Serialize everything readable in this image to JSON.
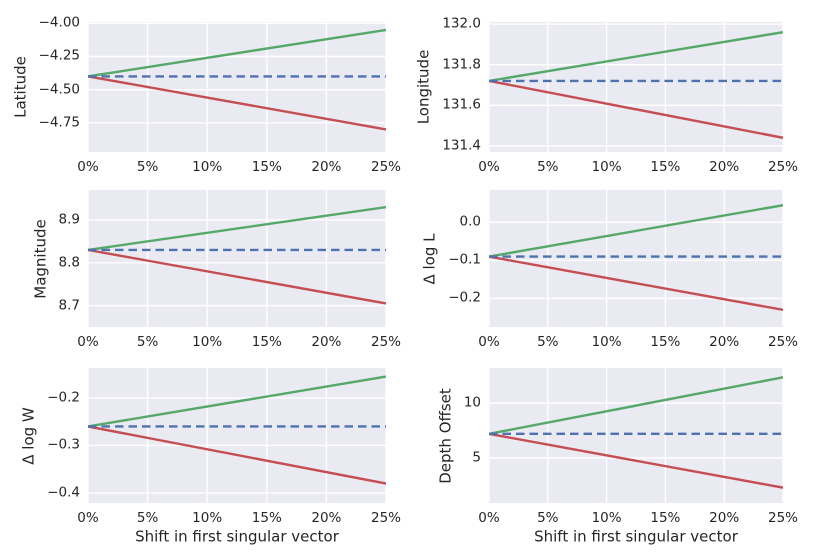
{
  "figure": {
    "xlabel": "Shift in first singular vector",
    "xlim": [
      0,
      25
    ],
    "xticks": [
      {
        "label": "0%",
        "value": 0
      },
      {
        "label": "5%",
        "value": 5
      },
      {
        "label": "10%",
        "value": 10
      },
      {
        "label": "15%",
        "value": 15
      },
      {
        "label": "20%",
        "value": 20
      },
      {
        "label": "25%",
        "value": 25
      }
    ]
  },
  "colors": {
    "green": "#55a868",
    "red": "#c44e52",
    "blue": "#4c72b0",
    "plot_bg": "#eaeaf2",
    "grid": "#ffffff",
    "text": "#262626"
  },
  "chart_data": [
    {
      "id": "latitude",
      "type": "line",
      "ylabel": "Latitude",
      "ylim": [
        -3.99,
        -4.97
      ],
      "yticks": [
        {
          "label": "−4.00",
          "value": -4.0
        },
        {
          "label": "−4.25",
          "value": -4.25
        },
        {
          "label": "−4.50",
          "value": -4.5
        },
        {
          "label": "−4.75",
          "value": -4.75
        }
      ],
      "show_xlabel": false,
      "series": [
        {
          "name": "upper-green-solid",
          "color": "green",
          "dash": false,
          "x": [
            0,
            25
          ],
          "y": [
            -4.4,
            -4.05
          ]
        },
        {
          "name": "lower-red-solid",
          "color": "red",
          "dash": false,
          "x": [
            0,
            25
          ],
          "y": [
            -4.4,
            -4.8
          ]
        },
        {
          "name": "baseline-blue-dashed",
          "color": "blue",
          "dash": true,
          "x": [
            0,
            25
          ],
          "y": [
            -4.4,
            -4.4
          ]
        }
      ]
    },
    {
      "id": "longitude",
      "type": "line",
      "ylabel": "Longitude",
      "ylim": [
        132.01,
        131.37
      ],
      "yticks": [
        {
          "label": "132.0",
          "value": 132.0
        },
        {
          "label": "131.8",
          "value": 131.8
        },
        {
          "label": "131.6",
          "value": 131.6
        },
        {
          "label": "131.4",
          "value": 131.4
        }
      ],
      "show_xlabel": false,
      "series": [
        {
          "name": "upper-green-solid",
          "color": "green",
          "dash": false,
          "x": [
            0,
            25
          ],
          "y": [
            131.72,
            131.96
          ]
        },
        {
          "name": "lower-red-solid",
          "color": "red",
          "dash": false,
          "x": [
            0,
            25
          ],
          "y": [
            131.72,
            131.44
          ]
        },
        {
          "name": "baseline-blue-dashed",
          "color": "blue",
          "dash": true,
          "x": [
            0,
            25
          ],
          "y": [
            131.72,
            131.72
          ]
        }
      ]
    },
    {
      "id": "magnitude",
      "type": "line",
      "ylabel": "Magnitude",
      "ylim": [
        8.97,
        8.65
      ],
      "yticks": [
        {
          "label": "8.9",
          "value": 8.9
        },
        {
          "label": "8.8",
          "value": 8.8
        },
        {
          "label": "8.7",
          "value": 8.7
        }
      ],
      "show_xlabel": false,
      "series": [
        {
          "name": "upper-green-solid",
          "color": "green",
          "dash": false,
          "x": [
            0,
            25
          ],
          "y": [
            8.83,
            8.93
          ]
        },
        {
          "name": "lower-red-solid",
          "color": "red",
          "dash": false,
          "x": [
            0,
            25
          ],
          "y": [
            8.83,
            8.705
          ]
        },
        {
          "name": "baseline-blue-dashed",
          "color": "blue",
          "dash": true,
          "x": [
            0,
            25
          ],
          "y": [
            8.83,
            8.83
          ]
        }
      ]
    },
    {
      "id": "delta-log-l",
      "type": "line",
      "ylabel": "Δ log L",
      "ylim": [
        0.085,
        -0.275
      ],
      "yticks": [
        {
          "label": "0.0",
          "value": 0.0
        },
        {
          "label": "−0.1",
          "value": -0.1
        },
        {
          "label": "−0.2",
          "value": -0.2
        }
      ],
      "show_xlabel": false,
      "series": [
        {
          "name": "upper-green-solid",
          "color": "green",
          "dash": false,
          "x": [
            0,
            25
          ],
          "y": [
            -0.09,
            0.045
          ]
        },
        {
          "name": "lower-red-solid",
          "color": "red",
          "dash": false,
          "x": [
            0,
            25
          ],
          "y": [
            -0.09,
            -0.23
          ]
        },
        {
          "name": "baseline-blue-dashed",
          "color": "blue",
          "dash": true,
          "x": [
            0,
            25
          ],
          "y": [
            -0.09,
            -0.09
          ]
        }
      ]
    },
    {
      "id": "delta-log-w",
      "type": "line",
      "ylabel": "Δ log W",
      "ylim": [
        -0.137,
        -0.421
      ],
      "yticks": [
        {
          "label": "−0.2",
          "value": -0.2
        },
        {
          "label": "−0.3",
          "value": -0.3
        },
        {
          "label": "−0.4",
          "value": -0.4
        }
      ],
      "show_xlabel": true,
      "series": [
        {
          "name": "upper-green-solid",
          "color": "green",
          "dash": false,
          "x": [
            0,
            25
          ],
          "y": [
            -0.26,
            -0.155
          ]
        },
        {
          "name": "lower-red-solid",
          "color": "red",
          "dash": false,
          "x": [
            0,
            25
          ],
          "y": [
            -0.26,
            -0.38
          ]
        },
        {
          "name": "baseline-blue-dashed",
          "color": "blue",
          "dash": true,
          "x": [
            0,
            25
          ],
          "y": [
            -0.26,
            -0.26
          ]
        }
      ]
    },
    {
      "id": "depth-offset",
      "type": "line",
      "ylabel": "Depth Offset",
      "ylim": [
        13.2,
        0.9
      ],
      "yticks": [
        {
          "label": "10",
          "value": 10
        },
        {
          "label": "5",
          "value": 5
        }
      ],
      "show_xlabel": true,
      "series": [
        {
          "name": "upper-green-solid",
          "color": "green",
          "dash": false,
          "x": [
            0,
            25
          ],
          "y": [
            7.2,
            12.35
          ]
        },
        {
          "name": "lower-red-solid",
          "color": "red",
          "dash": false,
          "x": [
            0,
            25
          ],
          "y": [
            7.2,
            2.3
          ]
        },
        {
          "name": "baseline-blue-dashed",
          "color": "blue",
          "dash": true,
          "x": [
            0,
            25
          ],
          "y": [
            7.2,
            7.2
          ]
        }
      ]
    }
  ]
}
